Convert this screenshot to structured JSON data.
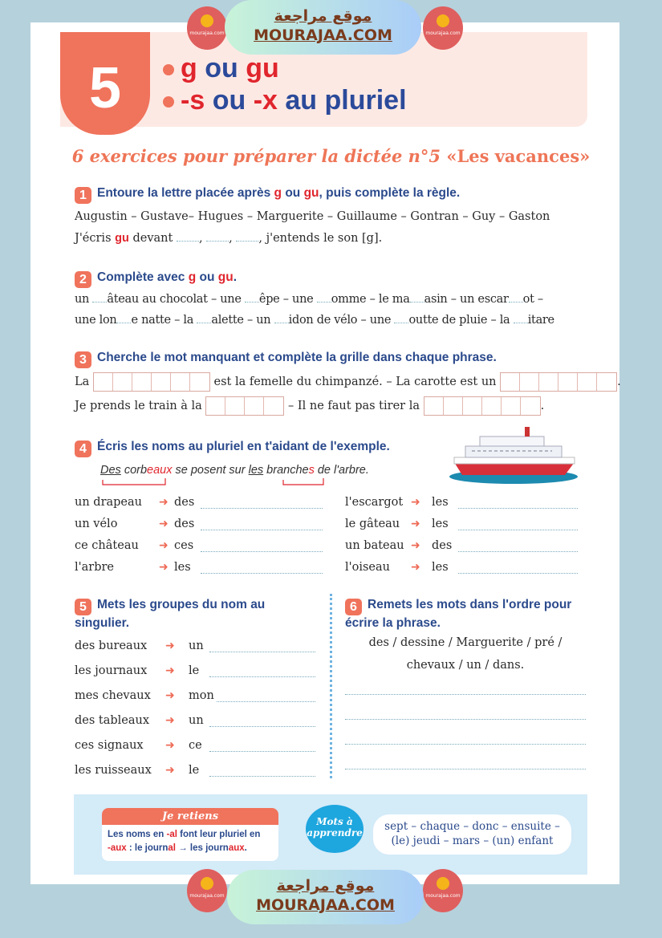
{
  "watermark": {
    "arabic": "موقع مراجعة",
    "latin": "MOURAJAA.COM",
    "logo_text": "mourajaa.com"
  },
  "header": {
    "number": "5",
    "line1": [
      "g",
      "ou",
      "gu"
    ],
    "line2": [
      "-s",
      "ou",
      "-x",
      "au pluriel"
    ],
    "subtitle_italic": "6 exercices pour préparer la dictée n°5",
    "subtitle_bold": "«Les vacances»"
  },
  "ex1": {
    "num": "1",
    "q": [
      "Entoure la lettre placée après ",
      "g",
      " ou ",
      "gu",
      ", puis complète la règle."
    ],
    "names": "Augustin – Gustave– Hugues – Marguerite – Guillaume – Gontran – Guy – Gaston",
    "rule": [
      "J'écris ",
      "gu",
      " devant ",
      ", ",
      ", ",
      ", j'entends le son [g]."
    ]
  },
  "ex2": {
    "num": "2",
    "q": [
      "Complète avec ",
      "g",
      " ou ",
      "gu",
      "."
    ],
    "line1": [
      "un ",
      "âteau au chocolat – une ",
      "êpe – une ",
      "omme – le ma",
      "asin – un escar",
      "ot –"
    ],
    "line2": [
      "une lon",
      "e natte – la ",
      "alette – un ",
      "idon de vélo – une ",
      "outte de pluie – la ",
      "itare"
    ]
  },
  "ex3": {
    "num": "3",
    "q": "Cherche le mot manquant et complète la grille dans chaque phrase.",
    "l1": [
      "La",
      "est la femelle du chimpanzé. – La carotte est un",
      "."
    ],
    "l2": [
      "Je prends le train à la",
      "– Il ne faut pas tirer la",
      "."
    ]
  },
  "ex4": {
    "num": "4",
    "q": "Écris les noms au pluriel en t'aidant de l'exemple.",
    "example": [
      "Des",
      " corb",
      "eaux",
      " se posent sur ",
      "les",
      " branche",
      "s",
      " de l'arbre."
    ],
    "left": [
      [
        "un drapeau",
        "des"
      ],
      [
        "un vélo",
        "des"
      ],
      [
        "ce château",
        "ces"
      ],
      [
        "l'arbre",
        "les"
      ]
    ],
    "right": [
      [
        "l'escargot",
        "les"
      ],
      [
        "le gâteau",
        "les"
      ],
      [
        "un bateau",
        "des"
      ],
      [
        "l'oiseau",
        "les"
      ]
    ]
  },
  "ex5": {
    "num": "5",
    "q1": "Mets les groupes du nom au",
    "q2": "singulier.",
    "rows": [
      [
        "des bureaux",
        "un"
      ],
      [
        "les journaux",
        "le"
      ],
      [
        "mes chevaux",
        "mon"
      ],
      [
        "des tableaux",
        "un"
      ],
      [
        "ces signaux",
        "ce"
      ],
      [
        "les ruisseaux",
        "le"
      ]
    ]
  },
  "ex6": {
    "num": "6",
    "q1": "Remets les mots dans l'ordre pour",
    "q2": "écrire la phrase.",
    "w1": "des / dessine / Marguerite / pré /",
    "w2": "chevaux / un / dans."
  },
  "retiens": {
    "title": "Je retiens",
    "t": [
      "Les noms en ",
      "-al",
      " font leur pluriel en"
    ],
    "t2": [
      "-aux",
      " : le journ",
      "al",
      " → les journ",
      "aux",
      "."
    ]
  },
  "mots": {
    "bubble1": "Mots à",
    "bubble2": "apprendre",
    "l1": "sept – chaque – donc – ensuite –",
    "l2": "(le) jeudi – mars – (un) enfant"
  },
  "colors": {
    "accent": "#f0735c",
    "title_blue": "#2b4a8c",
    "red": "#e0252d",
    "note_bg": "#d4ebf8"
  }
}
